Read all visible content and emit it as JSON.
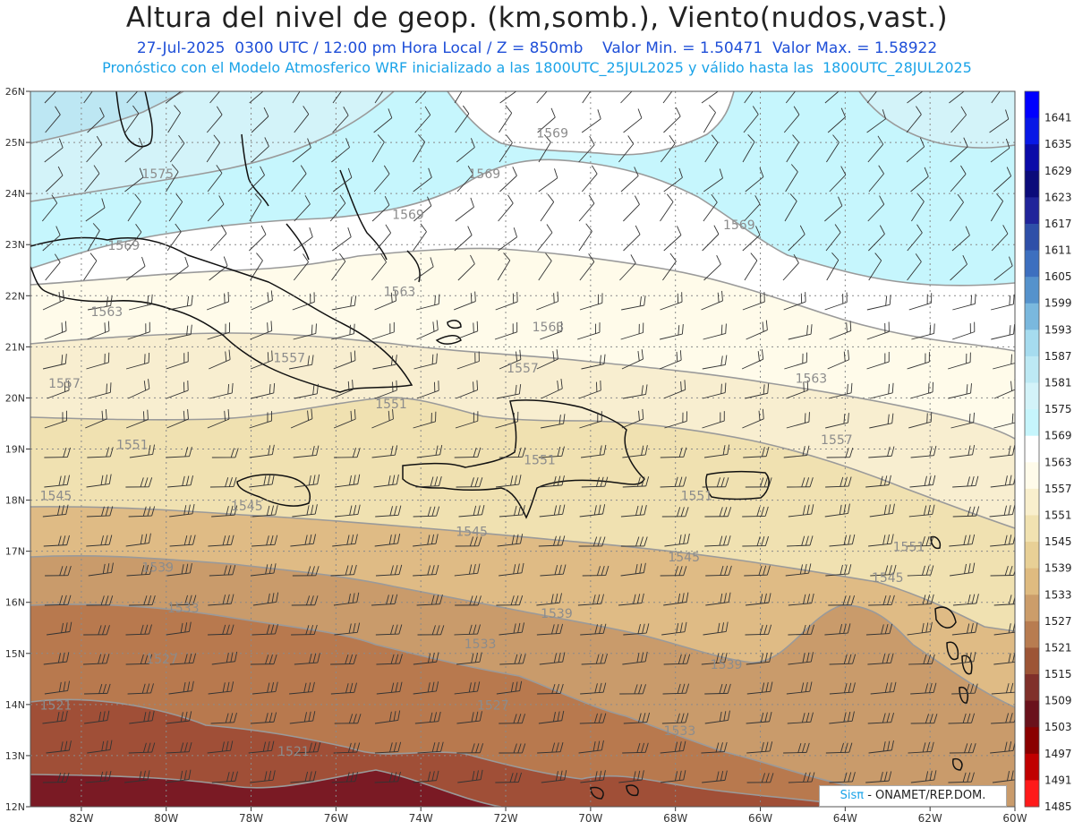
{
  "header": {
    "title": "Altura del nivel de geop. (km,somb.), Viento(nudos,vast.)",
    "subtitle_line1": "27-Jul-2025  0300 UTC / 12:00 pm Hora Local / Z = 850mb    Valor Min. = 1.50471  Valor Max. = 1.58922",
    "subtitle_line2": "Pronóstico con el Modelo Atmosferico WRF inicializado a las 1800UTC_25JUL2025 y válido hasta las  1800UTC_28JUL2025"
  },
  "map": {
    "lon_range": [
      -83.2,
      -60
    ],
    "lat_range": [
      12,
      26
    ],
    "lon_ticks": [
      "82W",
      "80W",
      "78W",
      "76W",
      "74W",
      "72W",
      "70W",
      "68W",
      "66W",
      "64W",
      "62W",
      "60W"
    ],
    "lat_ticks": [
      "12N",
      "13N",
      "14N",
      "15N",
      "16N",
      "17N",
      "18N",
      "19N",
      "20N",
      "21N",
      "22N",
      "23N",
      "24N",
      "25N",
      "26N"
    ],
    "contour_labels": [
      {
        "text": "1575",
        "lon": -80.2,
        "lat": 24.3
      },
      {
        "text": "1569",
        "lon": -70.9,
        "lat": 25.1
      },
      {
        "text": "1569",
        "lon": -72.5,
        "lat": 24.3
      },
      {
        "text": "1569",
        "lon": -74.3,
        "lat": 23.5
      },
      {
        "text": "1569",
        "lon": -66.5,
        "lat": 23.3
      },
      {
        "text": "1569",
        "lon": -81.0,
        "lat": 22.9
      },
      {
        "text": "1563",
        "lon": -74.5,
        "lat": 22.0
      },
      {
        "text": "1563",
        "lon": -81.4,
        "lat": 21.6
      },
      {
        "text": "1563",
        "lon": -71.0,
        "lat": 21.3
      },
      {
        "text": "1563",
        "lon": -64.8,
        "lat": 20.3
      },
      {
        "text": "1557",
        "lon": -82.4,
        "lat": 20.2
      },
      {
        "text": "1557",
        "lon": -77.1,
        "lat": 20.7
      },
      {
        "text": "1557",
        "lon": -71.6,
        "lat": 20.5
      },
      {
        "text": "1557",
        "lon": -64.2,
        "lat": 19.1
      },
      {
        "text": "1551",
        "lon": -74.7,
        "lat": 19.8
      },
      {
        "text": "1551",
        "lon": -80.8,
        "lat": 19.0
      },
      {
        "text": "1551",
        "lon": -71.2,
        "lat": 18.7
      },
      {
        "text": "1551",
        "lon": -67.5,
        "lat": 18.0
      },
      {
        "text": "1551",
        "lon": -62.5,
        "lat": 17.0
      },
      {
        "text": "1545",
        "lon": -82.6,
        "lat": 18.0
      },
      {
        "text": "1545",
        "lon": -78.1,
        "lat": 17.8
      },
      {
        "text": "1545",
        "lon": -72.8,
        "lat": 17.3
      },
      {
        "text": "1545",
        "lon": -67.8,
        "lat": 16.8
      },
      {
        "text": "1545",
        "lon": -63.0,
        "lat": 16.4
      },
      {
        "text": "1539",
        "lon": -80.2,
        "lat": 16.6
      },
      {
        "text": "1539",
        "lon": -70.8,
        "lat": 15.7
      },
      {
        "text": "1539",
        "lon": -66.8,
        "lat": 14.7
      },
      {
        "text": "1533",
        "lon": -79.6,
        "lat": 15.8
      },
      {
        "text": "1533",
        "lon": -72.6,
        "lat": 15.1
      },
      {
        "text": "1533",
        "lon": -67.9,
        "lat": 13.4
      },
      {
        "text": "1527",
        "lon": -80.1,
        "lat": 14.8
      },
      {
        "text": "1527",
        "lon": -72.3,
        "lat": 13.9
      },
      {
        "text": "1521",
        "lon": -82.6,
        "lat": 13.9
      },
      {
        "text": "1521",
        "lon": -77.0,
        "lat": 13.0
      }
    ]
  },
  "colorbar": {
    "labels": [
      "1641",
      "1635",
      "1629",
      "1623",
      "1617",
      "1611",
      "1605",
      "1599",
      "1593",
      "1587",
      "1581",
      "1575",
      "1569",
      "1563",
      "1557",
      "1551",
      "1545",
      "1539",
      "1533",
      "1527",
      "1521",
      "1515",
      "1509",
      "1503",
      "1497",
      "1491",
      "1485"
    ],
    "colors": [
      "#0000ff",
      "#0818e6",
      "#0a0aa8",
      "#0b0b7a",
      "#20249a",
      "#2e4fa8",
      "#3d6fbf",
      "#5592cc",
      "#7ab8de",
      "#a6dcef",
      "#bde9f4",
      "#d3f3f9",
      "#c6f5fc",
      "#ffffff",
      "#fffbea",
      "#f9efcd",
      "#f1e2b1",
      "#e8d096",
      "#dfbb80",
      "#cc9d6a",
      "#b87c50",
      "#9d5536",
      "#80302a",
      "#6a121c",
      "#8a0000",
      "#c00000",
      "#ff1a1a"
    ]
  },
  "credit": {
    "brand": "Sisπ",
    "org": " - ONAMET/REP.DOM."
  }
}
